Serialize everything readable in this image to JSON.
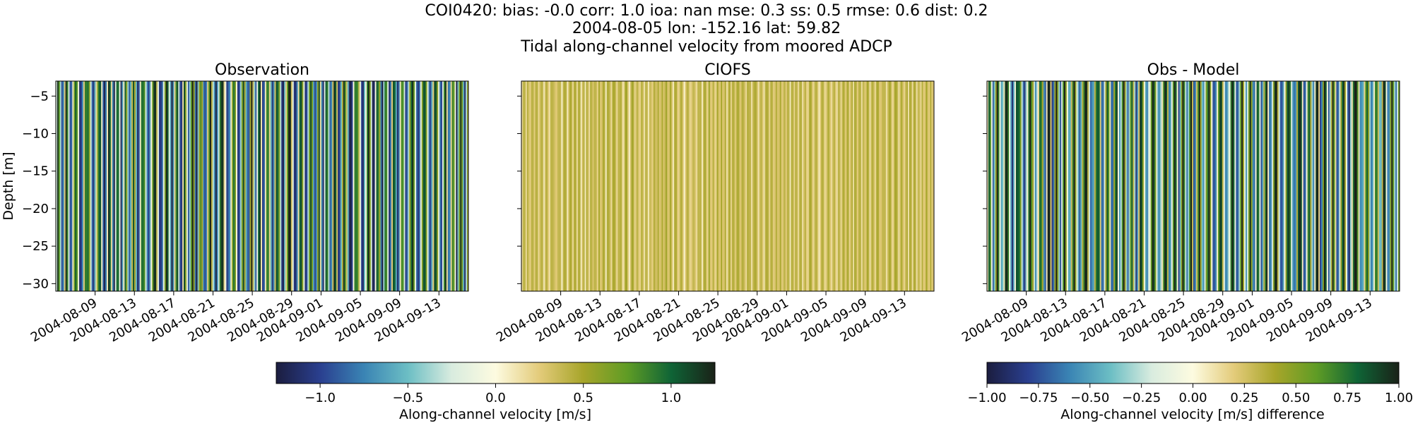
{
  "figure": {
    "title_lines": [
      "COI0420: bias: -0.0  corr: 1.0  ioa: nan  mse: 0.3  ss: 0.5  rmse: 0.6  dist: 0.2",
      "2004-08-05 lon: -152.16 lat: 59.82",
      "Tidal along-channel velocity from moored ADCP"
    ]
  },
  "chart_data": [
    {
      "type": "heatmap",
      "title": "Observation",
      "ylabel": "Depth [m]",
      "xlabel": "",
      "x_ticks": [
        "2004-08-09",
        "2004-08-13",
        "2004-08-17",
        "2004-08-21",
        "2004-08-25",
        "2004-08-29",
        "2004-09-01",
        "2004-09-05",
        "2004-09-09",
        "2004-09-13"
      ],
      "y_ticks": [
        -5,
        -10,
        -15,
        -20,
        -25,
        -30
      ],
      "ylim": [
        -31,
        -3
      ],
      "xlim": [
        "2004-08-05",
        "2004-09-16"
      ],
      "value_range": [
        -1.25,
        1.25
      ],
      "colormap": "topo diverging",
      "description_series": "tidal velocity columns alternating strongly positive/negative"
    },
    {
      "type": "heatmap",
      "title": "CIOFS",
      "ylabel": "",
      "x_ticks": [
        "2004-08-09",
        "2004-08-13",
        "2004-08-17",
        "2004-08-21",
        "2004-08-25",
        "2004-08-29",
        "2004-09-01",
        "2004-09-05",
        "2004-09-09",
        "2004-09-13"
      ],
      "y_ticks": [
        -5,
        -10,
        -15,
        -20,
        -25,
        -30
      ],
      "ylim": [
        -31,
        -3
      ],
      "xlim": [
        "2004-08-05",
        "2004-09-16"
      ],
      "value_range": [
        -1.25,
        1.25
      ]
    },
    {
      "type": "heatmap",
      "title": "Obs - Model",
      "ylabel": "",
      "x_ticks": [
        "2004-08-09",
        "2004-08-13",
        "2004-08-17",
        "2004-08-21",
        "2004-08-25",
        "2004-08-29",
        "2004-09-01",
        "2004-09-05",
        "2004-09-09",
        "2004-09-13"
      ],
      "y_ticks": [
        -5,
        -10,
        -15,
        -20,
        -25,
        -30
      ],
      "ylim": [
        -31,
        -3
      ],
      "xlim": [
        "2004-08-05",
        "2004-09-16"
      ],
      "value_range": [
        -1.0,
        1.0
      ]
    }
  ],
  "colorbars": [
    {
      "label": "Along-channel velocity [m/s]",
      "range": [
        -1.25,
        1.25
      ],
      "ticks": [
        -1.0,
        -0.5,
        0.0,
        0.5,
        1.0
      ],
      "tick_labels": [
        "−1.0",
        "−0.5",
        "0.0",
        "0.5",
        "1.0"
      ]
    },
    {
      "label": "Along-channel velocity [m/s] difference",
      "range": [
        -1.0,
        1.0
      ],
      "ticks": [
        -1.0,
        -0.75,
        -0.5,
        -0.25,
        0.0,
        0.25,
        0.5,
        0.75,
        1.0
      ],
      "tick_labels": [
        "−1.00",
        "−0.75",
        "−0.50",
        "−0.25",
        "0.00",
        "0.25",
        "0.50",
        "0.75",
        "1.00"
      ]
    }
  ],
  "colors": {
    "cmap_stops": [
      "#1b1d3f",
      "#2a3f8f",
      "#3a84b4",
      "#6cbec4",
      "#d9ecdf",
      "#fdfbe0",
      "#e3cb7a",
      "#a7a52a",
      "#5f9c25",
      "#0f6436",
      "#1a2218"
    ]
  }
}
